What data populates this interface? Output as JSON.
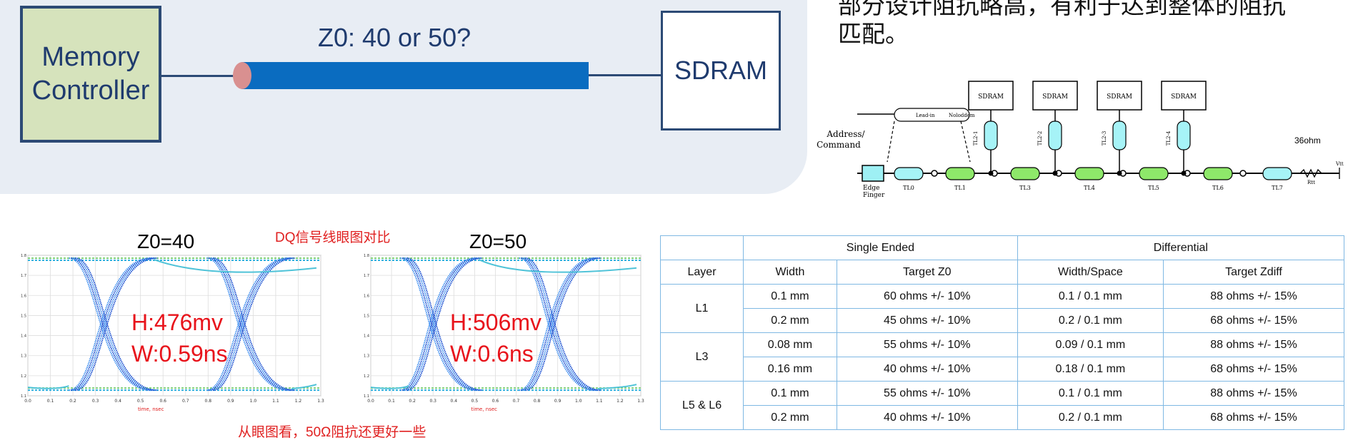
{
  "top_diagram": {
    "controller_label": "Memory Controller",
    "sdram_label": "SDRAM",
    "question": "Z0: 40 or 50?"
  },
  "cn_text": {
    "line1": "部分设计阻抗略高，有利于达到整体的阻抗",
    "line2": "匹配。"
  },
  "topology": {
    "sdram_labels": [
      "SDRAM",
      "SDRAM",
      "SDRAM",
      "SDRAM"
    ],
    "branch_labels": [
      "TL2-1",
      "TL2-2",
      "TL2-3",
      "TL2-4"
    ],
    "main_labels": [
      "TL0",
      "TL1",
      "TL3",
      "TL4",
      "TL5",
      "TL6",
      "TL7"
    ],
    "source_label_1": "Address/",
    "source_label_2": "Command",
    "edge_label_1": "Edge",
    "edge_label_2": "Finger",
    "leadin_label": "Lead-in",
    "nobd_label": "Noloddem",
    "ohm_label": "36ohm",
    "rtt_label": "Rtt",
    "vtt_label": "Vtt"
  },
  "eye_section": {
    "caption_top": "DQ信号线眼图对比",
    "caption_bottom": "从眼图看，50Ω阻抗还更好一些",
    "eye1": {
      "title": "Z0=40",
      "h": "H:476mv",
      "w": "W:0.59ns",
      "xlabel": "time, nsec"
    },
    "eye2": {
      "title": "Z0=50",
      "h": "H:506mv",
      "w": "W:0.6ns",
      "xlabel": "time, nsec"
    },
    "x_ticks": [
      "0.0",
      "0.1",
      "0.2",
      "0.3",
      "0.4",
      "0.5",
      "0.6",
      "0.7",
      "0.8",
      "0.9",
      "1.0",
      "1.1",
      "1.2",
      "1.3"
    ],
    "y_ticks": [
      "1.8",
      "1.7",
      "1.6",
      "1.5",
      "1.4",
      "1.3",
      "1.2",
      "1.1"
    ]
  },
  "table": {
    "group_single": "Single Ended",
    "group_diff": "Differential",
    "headers": [
      "Layer",
      "Width",
      "Target Z0",
      "Width/Space",
      "Target Zdiff"
    ],
    "rows": [
      {
        "layer": "L1",
        "width": "0.1 mm",
        "z0": "60 ohms +/- 10%",
        "ws": "0.1 / 0.1 mm",
        "zdiff": "88 ohms +/- 15%"
      },
      {
        "layer": "",
        "width": "0.2 mm",
        "z0": "45 ohms +/- 10%",
        "ws": "0.2 / 0.1 mm",
        "zdiff": "68 ohms +/- 15%"
      },
      {
        "layer": "L3",
        "width": "0.08 mm",
        "z0": "55 ohms +/- 10%",
        "ws": "0.09 / 0.1 mm",
        "zdiff": "88 ohms +/- 15%"
      },
      {
        "layer": "",
        "width": "0.16 mm",
        "z0": "40 ohms +/- 10%",
        "ws": "0.18 / 0.1 mm",
        "zdiff": "68 ohms +/- 15%"
      },
      {
        "layer": "L5 & L6",
        "width": "0.1 mm",
        "z0": "55 ohms +/- 10%",
        "ws": "0.1 / 0.1 mm",
        "zdiff": "88 ohms +/- 15%"
      },
      {
        "layer": "",
        "width": "0.2 mm",
        "z0": "40 ohms +/- 10%",
        "ws": "0.2 / 0.1 mm",
        "zdiff": "68 ohms +/- 15%"
      }
    ]
  }
}
